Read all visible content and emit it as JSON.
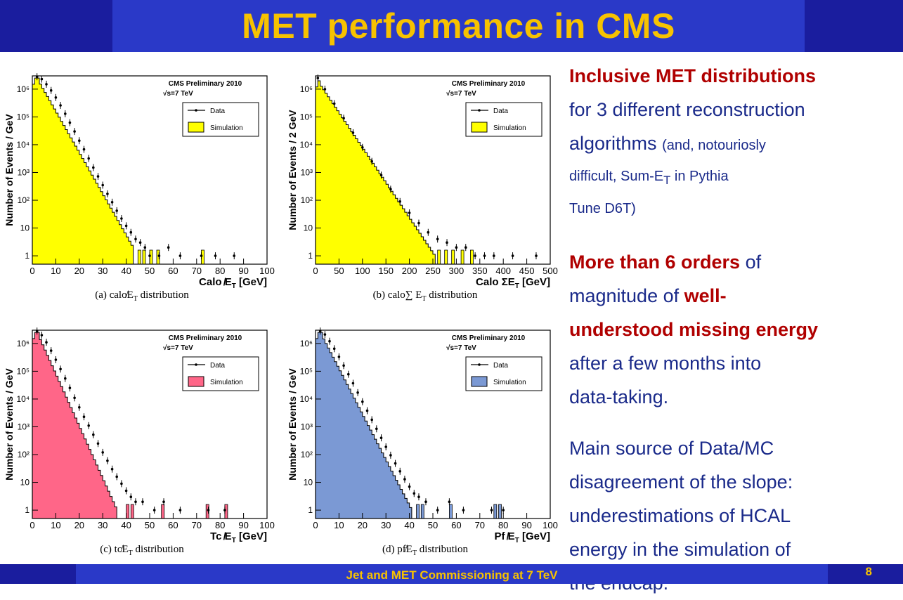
{
  "header": {
    "title": "MET performance in CMS"
  },
  "footer": {
    "text": "Jet and MET Commissioning at 7 TeV",
    "page": "8"
  },
  "colors": {
    "title": "#f7c200",
    "bar": "#2a39c8",
    "bar_dark": "#1a1d9e",
    "text": "#1a2a8a",
    "highlight": "#b00000"
  },
  "right_text": {
    "p1_red": "Inclusive MET distributions",
    "p1_a": "for 3 different reconstruction",
    "p1_b": "algorithms",
    "p1_small_a": "(and, notouriosly",
    "p1_small_b": "difficult,  Sum-E",
    "p1_small_sub": "T",
    "p1_small_c": " in Pythia",
    "p1_small_d": "Tune D6T)",
    "p2_red": "More than 6 orders",
    "p2_a": " of",
    "p2_b": "magnitude of ",
    "p2_red2": "well-",
    "p2_red3": "understood missing energy",
    "p2_c": "after a few months into",
    "p2_d": "data-taking.",
    "p3_a": "Main source of Data/MC",
    "p3_b": "disagreement of the slope:",
    "p3_c": "underestimations of HCAL",
    "p3_d": "energy in the simulation of",
    "p3_e": "the endcap."
  },
  "chart_data": [
    {
      "type": "bar",
      "caption": "(a) calo̸E",
      "caption_sub": "T",
      "caption_tail": " distribution",
      "preliminary": "CMS Preliminary 2010",
      "energy": "√s=7 TeV",
      "legend": [
        "Data",
        "Simulation"
      ],
      "fill": "#ffff00",
      "xlabel": "Calo ̸E",
      "xlabel_sub": "T",
      "xlabel_tail": " [GeV]",
      "ylabel": "Number of Events / GeV",
      "log_y": true,
      "xlim": [
        0,
        100
      ],
      "ylim": [
        0.5,
        3000000
      ],
      "xticks": [
        "0",
        "10",
        "20",
        "30",
        "40",
        "50",
        "60",
        "70",
        "80",
        "90",
        "100"
      ],
      "yticks": [
        {
          "v": 1,
          "t": "1"
        },
        {
          "v": 10,
          "t": "10"
        },
        {
          "v": 100,
          "t": "10²"
        },
        {
          "v": 1000,
          "t": "10³"
        },
        {
          "v": 10000,
          "t": "10⁴"
        },
        {
          "v": 100000,
          "t": "10⁵"
        },
        {
          "v": 1000000,
          "t": "10⁶"
        }
      ],
      "sim_peak": [
        2,
        2500000
      ],
      "sim_end": [
        43,
        2
      ],
      "sim_tail_x": [
        45,
        47,
        50,
        53,
        72
      ],
      "data_points": [
        [
          2,
          2800000
        ],
        [
          4,
          2300000
        ],
        [
          6,
          1500000
        ],
        [
          8,
          900000
        ],
        [
          10,
          500000
        ],
        [
          12,
          260000
        ],
        [
          14,
          130000
        ],
        [
          16,
          62000
        ],
        [
          18,
          30000
        ],
        [
          20,
          14000
        ],
        [
          22,
          6800
        ],
        [
          24,
          3200
        ],
        [
          26,
          1500
        ],
        [
          28,
          720
        ],
        [
          30,
          350
        ],
        [
          32,
          170
        ],
        [
          34,
          85
        ],
        [
          36,
          42
        ],
        [
          38,
          22
        ],
        [
          40,
          12
        ],
        [
          42,
          7
        ],
        [
          44,
          4
        ],
        [
          46,
          3
        ],
        [
          48,
          2
        ],
        [
          50,
          1
        ],
        [
          54,
          1
        ],
        [
          58,
          2
        ],
        [
          63,
          1
        ],
        [
          72,
          1
        ],
        [
          78,
          1
        ],
        [
          86,
          1
        ]
      ]
    },
    {
      "type": "bar",
      "caption": "(b) calo∑ E",
      "caption_sub": "T",
      "caption_tail": " distribution",
      "preliminary": "CMS Preliminary 2010",
      "energy": "√s=7 TeV",
      "legend": [
        "Data",
        "Simulation"
      ],
      "fill": "#ffff00",
      "xlabel": "Calo ΣE",
      "xlabel_sub": "T",
      "xlabel_tail": " [GeV]",
      "ylabel": "Number of Events / 2 GeV",
      "log_y": true,
      "xlim": [
        0,
        500
      ],
      "ylim": [
        0.5,
        3000000
      ],
      "xticks": [
        "0",
        "50",
        "100",
        "150",
        "200",
        "250",
        "300",
        "350",
        "400",
        "450",
        "500"
      ],
      "yticks": [
        {
          "v": 1,
          "t": "1"
        },
        {
          "v": 10,
          "t": "10"
        },
        {
          "v": 100,
          "t": "10²"
        },
        {
          "v": 1000,
          "t": "10³"
        },
        {
          "v": 10000,
          "t": "10⁴"
        },
        {
          "v": 100000,
          "t": "10⁵"
        },
        {
          "v": 1000000,
          "t": "10⁶"
        }
      ],
      "sim_peak": [
        5,
        2000000
      ],
      "sim_end": [
        255,
        1
      ],
      "sim_tail_x": [
        260,
        275,
        290,
        310,
        330
      ],
      "data_points": [
        [
          5,
          2500000
        ],
        [
          20,
          1000000
        ],
        [
          40,
          300000
        ],
        [
          60,
          90000
        ],
        [
          80,
          27000
        ],
        [
          100,
          8000
        ],
        [
          120,
          2500
        ],
        [
          140,
          800
        ],
        [
          160,
          250
        ],
        [
          180,
          90
        ],
        [
          200,
          35
        ],
        [
          220,
          15
        ],
        [
          240,
          7
        ],
        [
          260,
          4
        ],
        [
          280,
          3
        ],
        [
          300,
          2
        ],
        [
          320,
          2
        ],
        [
          340,
          1
        ],
        [
          360,
          1
        ],
        [
          380,
          1
        ],
        [
          420,
          1
        ],
        [
          470,
          1
        ]
      ]
    },
    {
      "type": "bar",
      "caption": "(c) tc̸E",
      "caption_sub": "T",
      "caption_tail": " distribution",
      "preliminary": "CMS Preliminary 2010",
      "energy": "√s=7 TeV",
      "legend": [
        "Data",
        "Simulation"
      ],
      "fill": "#ff6688",
      "xlabel": "Tc ̸E",
      "xlabel_sub": "T",
      "xlabel_tail": " [GeV]",
      "ylabel": "Number of Events / GeV",
      "log_y": true,
      "xlim": [
        0,
        100
      ],
      "ylim": [
        0.5,
        3000000
      ],
      "xticks": [
        "0",
        "10",
        "20",
        "30",
        "40",
        "50",
        "60",
        "70",
        "80",
        "90",
        "100"
      ],
      "yticks": [
        {
          "v": 1,
          "t": "1"
        },
        {
          "v": 10,
          "t": "10"
        },
        {
          "v": 100,
          "t": "10²"
        },
        {
          "v": 1000,
          "t": "10³"
        },
        {
          "v": 10000,
          "t": "10⁴"
        },
        {
          "v": 100000,
          "t": "10⁵"
        },
        {
          "v": 1000000,
          "t": "10⁶"
        }
      ],
      "sim_peak": [
        2,
        2500000
      ],
      "sim_end": [
        36,
        1
      ],
      "sim_tail_x": [
        40,
        42,
        55,
        74,
        82
      ],
      "data_points": [
        [
          2,
          2800000
        ],
        [
          4,
          2000000
        ],
        [
          6,
          1100000
        ],
        [
          8,
          550000
        ],
        [
          10,
          260000
        ],
        [
          12,
          120000
        ],
        [
          14,
          55000
        ],
        [
          16,
          25000
        ],
        [
          18,
          11000
        ],
        [
          20,
          5000
        ],
        [
          22,
          2300
        ],
        [
          24,
          1100
        ],
        [
          26,
          520
        ],
        [
          28,
          250
        ],
        [
          30,
          120
        ],
        [
          32,
          60
        ],
        [
          34,
          30
        ],
        [
          36,
          16
        ],
        [
          38,
          9
        ],
        [
          40,
          5
        ],
        [
          42,
          3
        ],
        [
          44,
          2
        ],
        [
          47,
          2
        ],
        [
          52,
          1
        ],
        [
          56,
          2
        ],
        [
          63,
          1
        ],
        [
          75,
          1
        ],
        [
          82,
          1
        ]
      ]
    },
    {
      "type": "bar",
      "caption": "(d) pf̸E",
      "caption_sub": "T",
      "caption_tail": " distribution",
      "preliminary": "CMS Preliminary 2010",
      "energy": "√s=7 TeV",
      "legend": [
        "Data",
        "Simulation"
      ],
      "fill": "#7b99d4",
      "xlabel": "Pf ̸E",
      "xlabel_sub": "T",
      "xlabel_tail": " [GeV]",
      "ylabel": "Number of Events / GeV",
      "log_y": true,
      "xlim": [
        0,
        100
      ],
      "ylim": [
        0.5,
        3000000
      ],
      "xticks": [
        "0",
        "10",
        "20",
        "30",
        "40",
        "50",
        "60",
        "70",
        "80",
        "90",
        "100"
      ],
      "yticks": [
        {
          "v": 1,
          "t": "1"
        },
        {
          "v": 10,
          "t": "10"
        },
        {
          "v": 100,
          "t": "10²"
        },
        {
          "v": 1000,
          "t": "10³"
        },
        {
          "v": 10000,
          "t": "10⁴"
        },
        {
          "v": 100000,
          "t": "10⁵"
        },
        {
          "v": 1000000,
          "t": "10⁶"
        }
      ],
      "sim_peak": [
        2,
        2500000
      ],
      "sim_end": [
        41,
        1
      ],
      "sim_tail_x": [
        43,
        45,
        57,
        76,
        78
      ],
      "data_points": [
        [
          2,
          2800000
        ],
        [
          4,
          2100000
        ],
        [
          6,
          1200000
        ],
        [
          8,
          650000
        ],
        [
          10,
          330000
        ],
        [
          12,
          160000
        ],
        [
          14,
          78000
        ],
        [
          16,
          37000
        ],
        [
          18,
          17000
        ],
        [
          20,
          8000
        ],
        [
          22,
          3800
        ],
        [
          24,
          1800
        ],
        [
          26,
          850
        ],
        [
          28,
          400
        ],
        [
          30,
          190
        ],
        [
          32,
          95
        ],
        [
          34,
          48
        ],
        [
          36,
          25
        ],
        [
          38,
          13
        ],
        [
          40,
          7
        ],
        [
          42,
          4
        ],
        [
          44,
          3
        ],
        [
          47,
          2
        ],
        [
          52,
          1
        ],
        [
          57,
          2
        ],
        [
          63,
          1
        ],
        [
          75,
          1
        ],
        [
          80,
          1
        ]
      ]
    }
  ]
}
